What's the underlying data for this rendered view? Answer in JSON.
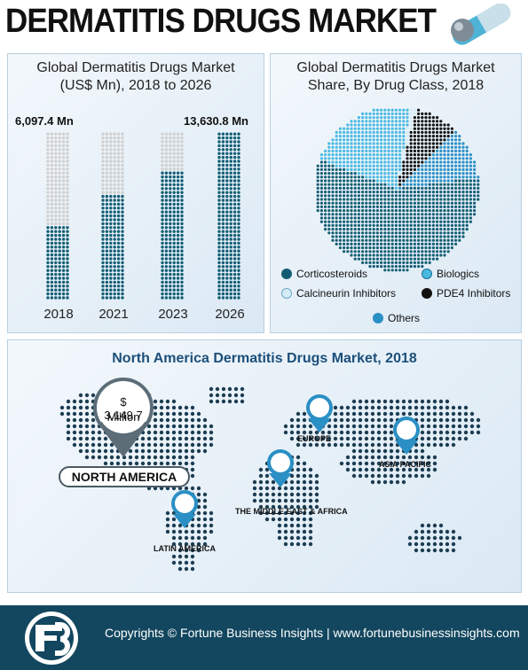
{
  "title": "DERMATITIS DRUGS MARKET",
  "left_panel": {
    "title_line1": "Global Dermatitis Drugs Market",
    "title_line2": "(US$ Mn), 2018 to 2026",
    "label_first": "6,097.4 Mn",
    "label_last": "13,630.8 Mn"
  },
  "right_panel": {
    "title_line1": "Global Dermatitis Drugs Market",
    "title_line2": "Share, By Drug Class, 2018",
    "legend": [
      {
        "label": "Corticosteroids",
        "color": "#125d73"
      },
      {
        "label": "Biologics",
        "color": "#49b9e0"
      },
      {
        "label": "Calcineurin Inhibitors",
        "color": "#d5ecf7"
      },
      {
        "label": "PDE4 Inhibitors",
        "color": "#111111"
      },
      {
        "label": "Others",
        "color": "#2a8fc4"
      }
    ]
  },
  "map_panel": {
    "title": "North America Dermatitis Drugs Market, 2018",
    "callout_value": "$ 3,149.7",
    "callout_unit": "Million",
    "regions": {
      "north_america": "NORTH AMERICA",
      "europe": "EUROPE",
      "asia_pacific": "ASIA PACIFIC",
      "mea": "THE MIDDLE EAST & AFRICA",
      "latin_america": "LATIN AMERICA"
    }
  },
  "footer": {
    "text": "Copyrights © Fortune Business Insights | www.fortunebusinessinsights.com"
  },
  "chart_data": [
    {
      "type": "bar",
      "title": "Global Dermatitis Drugs Market (US$ Mn), 2018 to 2026",
      "categories": [
        "2018",
        "2021",
        "2023",
        "2026"
      ],
      "values": [
        6097.4,
        8700,
        10600,
        13630.8
      ],
      "ylim": [
        0,
        13630.8
      ],
      "data_labels": [
        "6,097.4 Mn",
        "",
        "",
        "13,630.8 Mn"
      ]
    },
    {
      "type": "pie",
      "title": "Global Dermatitis Drugs Market Share, By Drug Class, 2018",
      "labels": [
        "Corticosteroids",
        "Biologics",
        "Calcineurin Inhibitors",
        "PDE4 Inhibitors",
        "Others"
      ],
      "values": [
        58,
        22,
        1,
        9,
        10
      ],
      "colors": [
        "#125d73",
        "#49b9e0",
        "#d5ecf7",
        "#111111",
        "#2a8fc4"
      ]
    }
  ]
}
